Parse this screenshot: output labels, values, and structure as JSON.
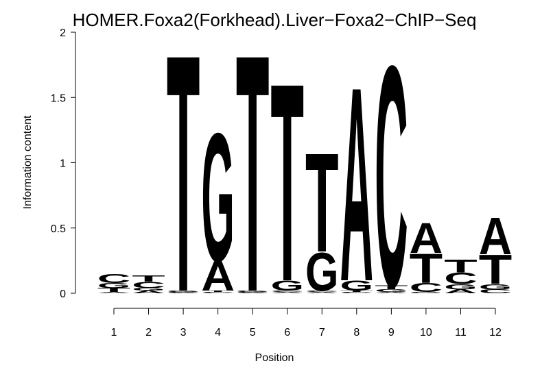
{
  "chart_data": {
    "type": "logo",
    "title": "HOMER.Foxa2(Forkhead).Liver−Foxa2−ChIP−Seq",
    "x_label": "Position",
    "y_label": "Information content",
    "categories": [
      1,
      2,
      3,
      4,
      5,
      6,
      7,
      8,
      9,
      10,
      11,
      12
    ],
    "ylim": [
      0,
      2
    ],
    "yticks": [
      0,
      0.5,
      1,
      1.5,
      2
    ],
    "series": [
      {
        "name": "A",
        "color": "#00ff00",
        "values": [
          0.01,
          0.02,
          0.005,
          0.23,
          0.005,
          0.01,
          0.01,
          1.53,
          0.01,
          0.24,
          0.03,
          0.29
        ]
      },
      {
        "name": "C",
        "color": "#0000ff",
        "values": [
          0.07,
          0.05,
          0.005,
          0.01,
          0.005,
          0.01,
          0.01,
          0.01,
          1.74,
          0.07,
          0.09,
          0.03
        ]
      },
      {
        "name": "G",
        "color": "#ffa500",
        "values": [
          0.04,
          0.02,
          0.01,
          1.01,
          0.01,
          0.08,
          0.3,
          0.08,
          0.02,
          0.01,
          0.04,
          0.04
        ]
      },
      {
        "name": "T",
        "color": "#ff0000",
        "values": [
          0.03,
          0.05,
          1.87,
          0.01,
          1.87,
          1.56,
          0.78,
          0.01,
          0.03,
          0.23,
          0.1,
          0.23
        ]
      }
    ]
  }
}
